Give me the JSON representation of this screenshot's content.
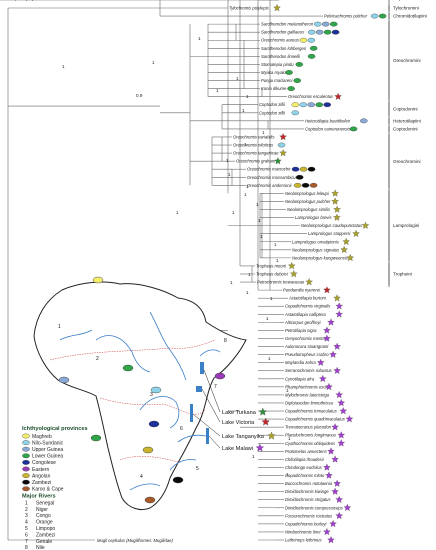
{
  "colors": {
    "Maghreb": "#f3ee6a",
    "Nilo-Sundanic": "#8fd3ea",
    "Upper Guinea": "#8aa9d6",
    "Lower Guinea": "#2fa64a",
    "Congolese": "#1f2f9a",
    "Eastern": "#9b3bb8",
    "Angolan": "#c9b52e",
    "Zambezi": "#0a0a0a",
    "Karoo & Cape": "#a85a2a",
    "star_green": "#2f8f3a",
    "star_red": "#c0282a",
    "star_olive": "#a9a02a",
    "star_violet": "#a23fd0",
    "africa_fill": "#ffffff",
    "river": "#3b7fc7"
  },
  "taxa": [
    {
      "name": "Tylochromis polylepis",
      "markers": [
        "star_olive"
      ]
    },
    {
      "name": "Pelvicachromis pulcher",
      "markers": [
        "Nilo-Sundanic",
        "Lower Guinea"
      ]
    },
    {
      "name": "Sarotherodon melanotheron",
      "markers": [
        "Nilo-Sundanic",
        "Upper Guinea",
        "Lower Guinea"
      ]
    },
    {
      "name": "Sarotherodon galilaeus",
      "markers": [
        "Nilo-Sundanic",
        "Upper Guinea",
        "Lower Guinea",
        "Congolese"
      ]
    },
    {
      "name": "Oreochromis aureus",
      "markers": [
        "Maghreb",
        "Nilo-Sundanic"
      ]
    },
    {
      "name": "Sarotherodon lohbergeri",
      "markers": [
        "Lower Guinea"
      ]
    },
    {
      "name": "Sarotherodon linnellii",
      "markers": [
        "Lower Guinea"
      ]
    },
    {
      "name": "Stomatepia pindu",
      "markers": [
        "Lower Guinea"
      ]
    },
    {
      "name": "Myaka myaka",
      "markers": [
        "Lower Guinea"
      ]
    },
    {
      "name": "Pungu maclareni",
      "markers": [
        "Lower Guinea"
      ]
    },
    {
      "name": "Konia dikume",
      "markers": [
        "Lower Guinea"
      ]
    },
    {
      "name": "Oreochromis esculentus",
      "markers": [
        "star_red"
      ]
    },
    {
      "name": "Coptodon zillii",
      "markers": [
        "Maghreb",
        "Nilo-Sundanic",
        "Upper Guinea",
        "Lower Guinea",
        "Congolese"
      ]
    },
    {
      "name": "Coptodon zillii",
      "markers": [
        "Nilo-Sundanic"
      ]
    },
    {
      "name": "Heterotilapia buettikoferi",
      "markers": [
        "Upper Guinea"
      ]
    },
    {
      "name": "Coptodon camerunensis",
      "markers": [
        "Lower Guinea"
      ]
    },
    {
      "name": "Oreochromis variabilis",
      "markers": [
        "star_red"
      ]
    },
    {
      "name": "Oreochromis niloticus",
      "markers": [
        "Nilo-Sundanic"
      ]
    },
    {
      "name": "Oreochromis tanganicae",
      "markers": [
        "star_olive"
      ]
    },
    {
      "name": "Oreochromis graham",
      "markers": [
        "star_green"
      ]
    },
    {
      "name": "Oreochromis macrochir",
      "markers": [
        "Congolese",
        "Angolan",
        "Zambezi"
      ]
    },
    {
      "name": "Oreochromis mossambicus",
      "markers": [
        "Zambezi"
      ]
    },
    {
      "name": "Oreochromis andersonii",
      "markers": [
        "Angolan",
        "Zambezi",
        "Karoo & Cape"
      ]
    },
    {
      "name": "Neolamprologus leleupi",
      "markers": [
        "star_olive"
      ]
    },
    {
      "name": "Neolamprologus pulcher",
      "markers": [
        "star_olive"
      ]
    },
    {
      "name": "Neolamprologus similis",
      "markers": [
        "star_olive"
      ]
    },
    {
      "name": "Lamprologus brevis",
      "markers": [
        "star_olive"
      ]
    },
    {
      "name": "Neolamprologus caudopunctatus",
      "markers": [
        "star_olive"
      ]
    },
    {
      "name": "Lamprologus stappersi",
      "markers": [
        "star_olive"
      ]
    },
    {
      "name": "Lamprologus ornatipinnis",
      "markers": [
        "star_olive"
      ]
    },
    {
      "name": "Neolamprologus signatus",
      "markers": [
        "star_olive"
      ]
    },
    {
      "name": "Neolamprologus kungweensis",
      "markers": [
        "star_olive"
      ]
    },
    {
      "name": "Tropheus moorii",
      "markers": [
        "star_olive"
      ]
    },
    {
      "name": "Tropheus duboisi",
      "markers": [
        "star_olive"
      ]
    },
    {
      "name": "Petrochromis trewavasae",
      "markers": [
        "star_olive"
      ]
    },
    {
      "name": "Pundamilia nyererei",
      "markers": [
        "star_red"
      ]
    },
    {
      "name": "Astatotilapia burtoni",
      "markers": [
        "star_olive"
      ]
    },
    {
      "name": "Copadichromis virginalis",
      "markers": [
        "star_violet"
      ]
    },
    {
      "name": "Astatotilapia calliptera",
      "markers": [
        "star_violet"
      ]
    },
    {
      "name": "Alticorpus geoffreyi",
      "markers": [
        "star_violet"
      ]
    },
    {
      "name": "Petrotilapia nigra",
      "markers": [
        "star_violet"
      ]
    },
    {
      "name": "Genyochromis mento",
      "markers": [
        "star_violet"
      ]
    },
    {
      "name": "Aulonocara stuartgranti",
      "markers": [
        "star_violet"
      ]
    },
    {
      "name": "Pseudotropheus crabro",
      "markers": [
        "star_violet"
      ]
    },
    {
      "name": "Maylandia zebra",
      "markers": [
        "star_violet"
      ]
    },
    {
      "name": "Serranochromis robustus",
      "markers": [
        "star_violet"
      ]
    },
    {
      "name": "Cynotilapia afra",
      "markers": [
        "star_violet"
      ]
    },
    {
      "name": "Rhamphochromis esox",
      "markers": [
        "star_violet"
      ]
    },
    {
      "name": "Mylochromis lateristriga",
      "markers": [
        "star_violet"
      ]
    },
    {
      "name": "Diplotaxodon limnothrissa",
      "markers": [
        "star_violet"
      ]
    },
    {
      "name": "Copadichromis trimaculatus",
      "markers": [
        "star_violet"
      ]
    },
    {
      "name": "Copadichromis quadrimaculatus",
      "markers": [
        "star_violet"
      ]
    },
    {
      "name": "Trematocranus placodon",
      "markers": [
        "star_violet"
      ]
    },
    {
      "name": "Placidochromis longimanus",
      "markers": [
        "star_violet"
      ]
    },
    {
      "name": "Cyathochromis obliquidens",
      "markers": [
        "star_violet"
      ]
    },
    {
      "name": "Protomelas annectens",
      "markers": [
        "star_violet"
      ]
    },
    {
      "name": "Chilotilapia rhoadesii",
      "markers": [
        "star_violet"
      ]
    },
    {
      "name": "Chindongo euchilus",
      "markers": [
        "star_violet"
      ]
    },
    {
      "name": "Copadichromis mloto",
      "markers": [
        "star_violet"
      ]
    },
    {
      "name": "Buccochromis nototaenia",
      "markers": [
        "star_violet"
      ]
    },
    {
      "name": "Dimidiochromis kiwinge",
      "markers": [
        "star_violet"
      ]
    },
    {
      "name": "Dimidiochromis strigatus",
      "markers": [
        "star_violet"
      ]
    },
    {
      "name": "Dimidiochromis compressiceps",
      "markers": [
        "star_violet"
      ]
    },
    {
      "name": "Fossorochromis rostratus",
      "markers": [
        "star_violet"
      ]
    },
    {
      "name": "Copadichromis borleyi",
      "markers": [
        "star_violet"
      ]
    },
    {
      "name": "Nimbochromis linni",
      "markers": [
        "star_violet"
      ]
    },
    {
      "name": "Lethrinops lethrinus",
      "markers": [
        "star_violet"
      ]
    },
    {
      "name": "Hemitilapia oxyrhynchus",
      "markers": [
        "star_violet"
      ]
    }
  ],
  "outgroup": "Mugil cephalus (Mugiliformes: Mugilidae)",
  "tribes": [
    {
      "label": "Tylochromini"
    },
    {
      "label": "Chromidotilapiini"
    },
    {
      "label": "Oreochromini"
    },
    {
      "label": "Coptodonini"
    },
    {
      "label": "Heterotilapiini"
    },
    {
      "label": "Coptodonini"
    },
    {
      "label": "Oreochromini"
    },
    {
      "label": "Lamprologini"
    },
    {
      "label": "Tropheini"
    },
    {
      "label": "Haplochromini"
    }
  ],
  "support_values": [
    "1",
    "1",
    "0.9",
    "1",
    "1",
    "1",
    "1",
    "1",
    "1",
    "1",
    "1",
    "1",
    "1",
    "1",
    "1",
    "1",
    "1",
    "1",
    "1",
    "1",
    "1",
    "1",
    "1",
    "1",
    "1",
    "1",
    "1",
    "1",
    "1",
    "1",
    "1",
    "1",
    "1"
  ],
  "legend": {
    "provinces_title": "Ichthyological provinces",
    "provinces": [
      "Maghreb",
      "Nilo-Sundanic",
      "Upper Guinea",
      "Lower Guinea",
      "Congolese",
      "Eastern",
      "Angolan",
      "Zambezi",
      "Karoo & Cape"
    ],
    "rivers_title": "Major Rivers",
    "rivers": [
      {
        "num": "1",
        "name": "Senegal"
      },
      {
        "num": "2",
        "name": "Niger"
      },
      {
        "num": "3",
        "name": "Congo"
      },
      {
        "num": "4",
        "name": "Orange"
      },
      {
        "num": "5",
        "name": "Limpopo"
      },
      {
        "num": "6",
        "name": "Zambezi"
      },
      {
        "num": "7",
        "name": "Genale"
      },
      {
        "num": "8",
        "name": "Nile"
      }
    ]
  },
  "lakes": [
    {
      "name": "Lake Turkana",
      "star": "star_green"
    },
    {
      "name": "Lake Victoria",
      "star": "star_red"
    },
    {
      "name": "Lake Tanganyika",
      "star": "star_olive"
    },
    {
      "name": "Lake Malawi",
      "star": "star_violet"
    }
  ],
  "map_river_numbers": [
    "8",
    "1",
    "2",
    "7",
    "3",
    "6",
    "5",
    "4"
  ]
}
